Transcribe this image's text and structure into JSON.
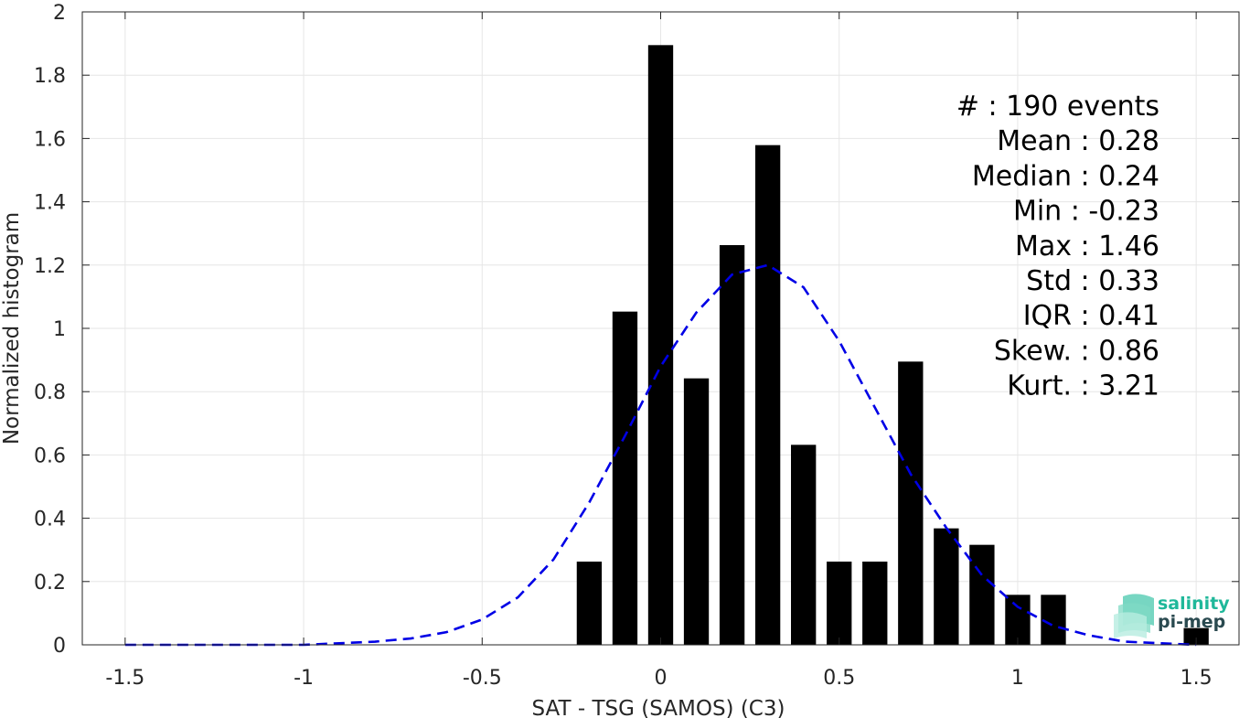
{
  "chart_data": {
    "type": "bar",
    "xlabel": "SAT - TSG (SAMOS) (C3)",
    "ylabel": "Normalized histogram",
    "xlim": [
      -1.62,
      1.62
    ],
    "ylim": [
      0,
      2
    ],
    "grid": true,
    "x_ticks": [
      -1.5,
      -1,
      -0.5,
      0,
      0.5,
      1,
      1.5
    ],
    "x_tick_labels": [
      "-1.5",
      "-1",
      "-0.5",
      "0",
      "0.5",
      "1",
      "1.5"
    ],
    "y_ticks": [
      0,
      0.2,
      0.4,
      0.6,
      0.8,
      1,
      1.2,
      1.4,
      1.6,
      1.8,
      2
    ],
    "y_tick_labels": [
      "0",
      "0.2",
      "0.4",
      "0.6",
      "0.8",
      "1",
      "1.2",
      "1.4",
      "1.6",
      "1.8",
      "2"
    ],
    "bar_width": 0.07,
    "bar_color": "#000000",
    "bars": {
      "x": [
        -0.2,
        -0.1,
        0.0,
        0.1,
        0.2,
        0.3,
        0.4,
        0.5,
        0.6,
        0.7,
        0.8,
        0.9,
        1.0,
        1.1,
        1.5
      ],
      "values": [
        0.263,
        1.053,
        1.895,
        0.842,
        1.263,
        1.579,
        0.632,
        0.263,
        0.263,
        0.895,
        0.368,
        0.316,
        0.158,
        0.158,
        0.053
      ]
    },
    "fit_curve": {
      "style": "dashed",
      "color": "#0000e6",
      "x": [
        -1.5,
        -1.4,
        -1.3,
        -1.2,
        -1.1,
        -1.0,
        -0.9,
        -0.8,
        -0.7,
        -0.6,
        -0.5,
        -0.4,
        -0.3,
        -0.2,
        -0.1,
        0.0,
        0.1,
        0.2,
        0.3,
        0.4,
        0.5,
        0.6,
        0.7,
        0.8,
        0.9,
        1.0,
        1.1,
        1.2,
        1.3,
        1.4,
        1.5
      ],
      "y": [
        0.0,
        0.0,
        0.0,
        0.0,
        0.0,
        0.0,
        0.005,
        0.01,
        0.02,
        0.04,
        0.08,
        0.15,
        0.27,
        0.45,
        0.66,
        0.88,
        1.05,
        1.17,
        1.2,
        1.13,
        0.96,
        0.75,
        0.54,
        0.37,
        0.22,
        0.12,
        0.06,
        0.03,
        0.01,
        0.005,
        0.0
      ]
    },
    "stats": [
      "#  : 190 events",
      "Mean : 0.28",
      "Median : 0.24",
      "Min : -0.23",
      "Max : 1.46",
      "Std : 0.33",
      "IQR : 0.41",
      "Skew. : 0.86",
      "Kurt. : 3.21"
    ],
    "logo": {
      "line1": "salinity",
      "line2": "pi-mep",
      "color1": "#1fb89a",
      "color2": "#2a4a50"
    }
  }
}
